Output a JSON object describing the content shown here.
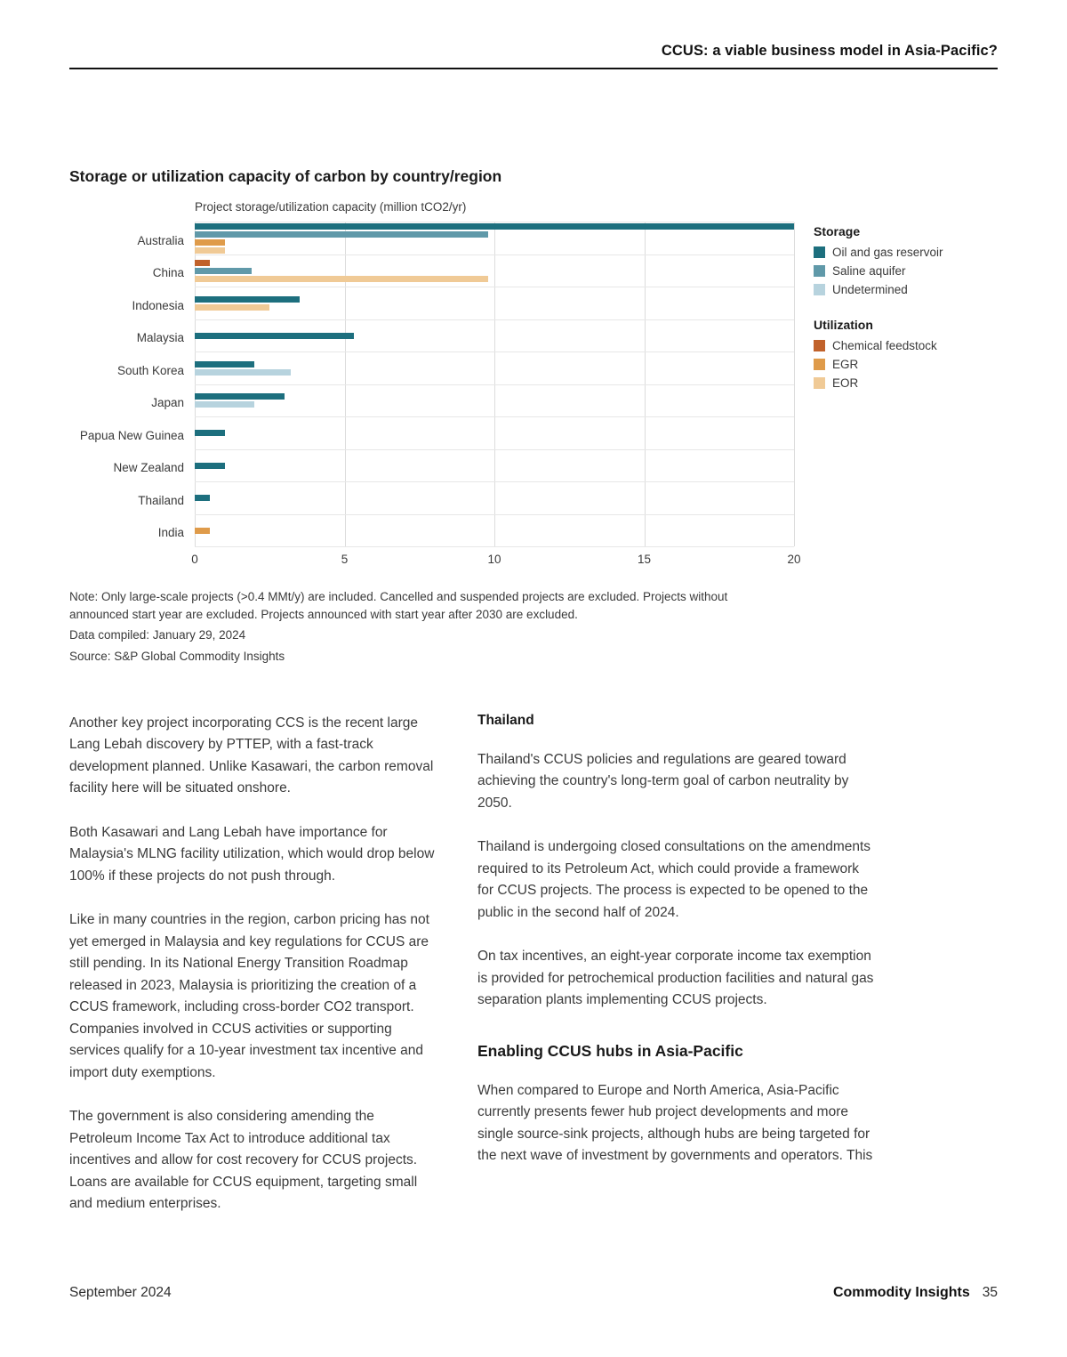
{
  "header": {
    "title": "CCUS: a viable business model in Asia-Pacific?"
  },
  "chart_data": {
    "type": "bar",
    "orientation": "horizontal",
    "title": "Storage or utilization capacity of carbon by country/region",
    "axis_title": "Project storage/utilization capacity (million tCO2/yr)",
    "xlim": [
      0,
      20
    ],
    "xticks": [
      0,
      5,
      10,
      15,
      20
    ],
    "grid": true,
    "legend_position": "right",
    "legend_groups": [
      {
        "title": "Storage",
        "items": [
          {
            "label": "Oil and gas reservoir",
            "color": "#1d6f7e"
          },
          {
            "label": "Saline aquifer",
            "color": "#6099a9"
          },
          {
            "label": "Undetermined",
            "color": "#b7d3de"
          }
        ]
      },
      {
        "title": "Utilization",
        "items": [
          {
            "label": "Chemical feedstock",
            "color": "#c1622b"
          },
          {
            "label": "EGR",
            "color": "#df9b4a"
          },
          {
            "label": "EOR",
            "color": "#f0ca96"
          }
        ]
      }
    ],
    "rows": [
      {
        "country": "Australia",
        "bars": [
          {
            "series": "Oil and gas reservoir",
            "value": 20.1
          },
          {
            "series": "Saline aquifer",
            "value": 9.8
          },
          {
            "series": "EGR",
            "value": 1.0
          },
          {
            "series": "EOR",
            "value": 1.0
          }
        ]
      },
      {
        "country": "China",
        "bars": [
          {
            "series": "Chemical feedstock",
            "value": 0.5
          },
          {
            "series": "Saline aquifer",
            "value": 1.9
          },
          {
            "series": "EOR",
            "value": 9.8
          }
        ]
      },
      {
        "country": "Indonesia",
        "bars": [
          {
            "series": "Oil and gas reservoir",
            "value": 3.5
          },
          {
            "series": "EOR",
            "value": 2.5
          }
        ]
      },
      {
        "country": "Malaysia",
        "bars": [
          {
            "series": "Oil and gas reservoir",
            "value": 5.3
          }
        ]
      },
      {
        "country": "South Korea",
        "bars": [
          {
            "series": "Oil and gas reservoir",
            "value": 2.0
          },
          {
            "series": "Undetermined",
            "value": 3.2
          }
        ]
      },
      {
        "country": "Japan",
        "bars": [
          {
            "series": "Oil and gas reservoir",
            "value": 3.0
          },
          {
            "series": "Undetermined",
            "value": 2.0
          }
        ]
      },
      {
        "country": "Papua New Guinea",
        "bars": [
          {
            "series": "Oil and gas reservoir",
            "value": 1.0
          }
        ]
      },
      {
        "country": "New Zealand",
        "bars": [
          {
            "series": "Oil and gas reservoir",
            "value": 1.0
          }
        ]
      },
      {
        "country": "Thailand",
        "bars": [
          {
            "series": "Oil and gas reservoir",
            "value": 0.5
          }
        ]
      },
      {
        "country": "India",
        "bars": [
          {
            "series": "EGR",
            "value": 0.5
          }
        ]
      }
    ],
    "note": "Note: Only large-scale projects (>0.4 MMt/y) are included. Cancelled and suspended projects are excluded. Projects without announced start year are excluded. Projects announced with start year after 2030 are excluded.",
    "data_compiled": "Data compiled: January 29, 2024",
    "source": "Source: S&P Global Commodity Insights"
  },
  "body": {
    "left_paragraphs": [
      "Another key project incorporating CCS is the recent large Lang Lebah discovery by PTTEP, with a fast-track development planned. Unlike Kasawari, the carbon removal facility here will be situated onshore.",
      "Both Kasawari and Lang Lebah have importance for Malaysia's MLNG facility utilization, which would drop below 100% if these projects do not push through.",
      "Like in many countries in the region, carbon pricing has not yet emerged in Malaysia and key regulations for CCUS are still pending. In its National Energy Transition Roadmap released in 2023, Malaysia is prioritizing the creation of a CCUS framework, including cross-border CO2 transport. Companies involved in CCUS activities or supporting services qualify for a 10-year investment tax incentive and import duty exemptions.",
      "The government is also considering amending the Petroleum Income Tax Act to introduce additional tax incentives and allow for cost recovery for CCUS projects. Loans are available for CCUS equipment, targeting small and medium enterprises."
    ],
    "right_heading": "Thailand",
    "right_paragraphs": [
      "Thailand's CCUS policies and regulations are geared toward achieving the country's long-term goal of carbon neutrality by 2050.",
      "Thailand is undergoing closed consultations on the amendments required to its Petroleum Act, which could provide a framework for CCUS projects. The process is expected to be opened to the public in the second half of 2024.",
      "On tax incentives, an eight-year corporate income tax exemption is provided for petrochemical production facilities and natural gas separation plants implementing CCUS projects."
    ],
    "section_heading": "Enabling CCUS hubs in Asia-Pacific",
    "section_paragraphs": [
      "When compared to Europe and North America, Asia-Pacific currently presents fewer hub project developments and more single source-sink projects, although hubs are being targeted for the next wave of investment by governments and operators. This"
    ]
  },
  "footer": {
    "date": "September 2024",
    "brand": "Commodity Insights",
    "page_number": "35"
  }
}
